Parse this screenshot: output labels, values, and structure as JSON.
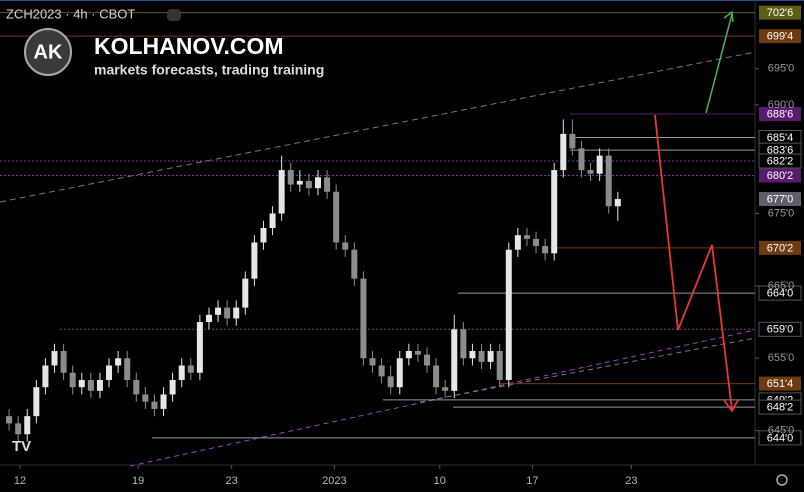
{
  "chart_data": {
    "type": "candlestick",
    "title": "ZCH2023 · 4h · CBOT",
    "annotations": [
      "AK",
      "KOLHANOV.COM",
      "markets forecasts, trading training"
    ],
    "up_color": "#e6e6e6",
    "down_color": "#8c8c8c",
    "open": [
      647,
      646,
      644.5,
      647,
      651,
      654,
      656,
      653,
      651,
      652,
      650.5,
      652,
      654,
      655,
      652,
      650,
      649,
      648,
      650,
      652,
      654,
      653,
      660,
      661,
      662,
      660.5,
      662,
      666,
      671,
      673,
      675,
      681,
      679,
      679.5,
      678.5,
      680,
      678,
      671,
      670,
      666,
      655,
      654,
      652.5,
      651,
      655,
      656,
      655.5,
      654,
      651,
      650.5,
      659,
      655,
      656,
      654.5,
      656,
      652,
      670,
      672,
      671.5,
      670.5,
      669.5,
      681,
      686,
      684,
      681,
      680.5,
      683,
      676
    ],
    "high": [
      648,
      647,
      648,
      652,
      655,
      657,
      657,
      654,
      653,
      653,
      653,
      655,
      656,
      656,
      653,
      651,
      650,
      651,
      653,
      655,
      655,
      661,
      662,
      663,
      663,
      663,
      667,
      672,
      674,
      676,
      683,
      682,
      681,
      680.5,
      681,
      681,
      679,
      672,
      671,
      667,
      656,
      655,
      654,
      656,
      657,
      657,
      656.5,
      655,
      652,
      661,
      660,
      657,
      657,
      657,
      657,
      671,
      673,
      673,
      672.5,
      671.5,
      682,
      688,
      688,
      685,
      682,
      684,
      684,
      678
    ],
    "low": [
      645,
      643.5,
      643.5,
      646,
      650,
      653,
      652,
      650,
      650,
      649.5,
      649.5,
      651,
      653,
      651,
      649,
      648,
      647,
      647,
      649,
      651,
      652,
      652,
      659,
      660,
      659.5,
      659.5,
      661,
      665,
      670,
      672,
      674,
      678,
      678,
      677.5,
      677.5,
      677,
      670,
      669,
      665,
      654,
      653,
      651.5,
      650,
      650,
      654,
      654.5,
      653,
      650,
      649.5,
      649.5,
      654,
      654,
      653.5,
      653.5,
      651,
      651,
      669,
      670.5,
      669.5,
      668.5,
      668.5,
      680,
      683,
      680,
      679.5,
      679.5,
      675,
      674
    ],
    "close": [
      646,
      644.5,
      647,
      651,
      654,
      656,
      653,
      651,
      652,
      650.5,
      652,
      654,
      655,
      652,
      650,
      649,
      648,
      650,
      652,
      654,
      653,
      660,
      661,
      662,
      660.5,
      662,
      666,
      671,
      673,
      675,
      681,
      679,
      679.5,
      678.5,
      680,
      678,
      671,
      670,
      666,
      655,
      654,
      652.5,
      651,
      655,
      656,
      655.5,
      654,
      651,
      650.5,
      659,
      655,
      656,
      654.5,
      656,
      652,
      670,
      672,
      671.5,
      670.5,
      669.5,
      681,
      686,
      684,
      681,
      680.5,
      683,
      676,
      677
    ],
    "xlim": [
      -1,
      81
    ],
    "xticks": [
      {
        "value": 1.2,
        "label": "12"
      },
      {
        "value": 14.2,
        "label": "19"
      },
      {
        "value": 24.5,
        "label": "23"
      },
      {
        "value": 35.8,
        "label": "2023"
      },
      {
        "value": 47.4,
        "label": "10"
      },
      {
        "value": 57.6,
        "label": "17"
      },
      {
        "value": 68.5,
        "label": "23"
      }
    ],
    "ylim": [
      640.25,
      704.5
    ],
    "yticks": [
      {
        "value": 695,
        "label": "695'0"
      },
      {
        "value": 690,
        "label": "690'0"
      },
      {
        "value": 675,
        "label": "675'0"
      },
      {
        "value": 665,
        "label": "665'0"
      },
      {
        "value": 655,
        "label": "655'0"
      },
      {
        "value": 645,
        "label": "645'0"
      }
    ],
    "levels": [
      {
        "value": 702.75,
        "label": "702'6",
        "color": "#5e5e12"
      },
      {
        "value": 699.5,
        "label": "699'4",
        "color": "#6e3a10"
      },
      {
        "value": 688.75,
        "label": "688'6",
        "color": "#5a1a6e"
      },
      {
        "value": 685.5,
        "label": "685'4",
        "color": "#000000"
      },
      {
        "value": 683.75,
        "label": "683'6",
        "color": "#000000"
      },
      {
        "value": 682.25,
        "label": "682'2",
        "color": "#000000"
      },
      {
        "value": 680.25,
        "label": "680'2",
        "color": "#5a1a6e"
      },
      {
        "value": 677,
        "label": "677'0",
        "color": "#5d606b"
      },
      {
        "value": 670.25,
        "label": "670'2",
        "color": "#6e3a10"
      },
      {
        "value": 664,
        "label": "664'0",
        "color": "#000000"
      },
      {
        "value": 659,
        "label": "659'0",
        "color": "#000000"
      },
      {
        "value": 651.5,
        "label": "651'4",
        "color": "#6e3a10"
      },
      {
        "value": 649.25,
        "label": "649'2",
        "color": "#000000"
      },
      {
        "value": 648.25,
        "label": "648'2",
        "color": "#000000"
      },
      {
        "value": 644,
        "label": "644'0",
        "color": "#000000"
      }
    ]
  }
}
